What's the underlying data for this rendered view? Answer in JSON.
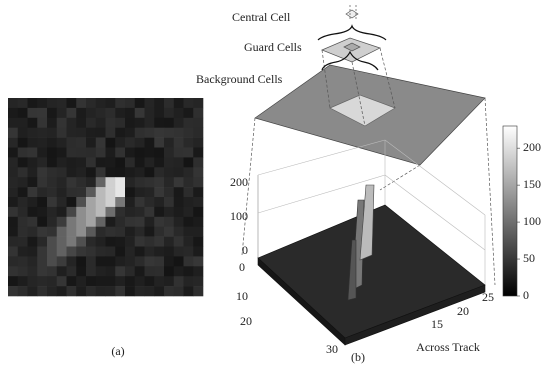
{
  "labels": {
    "central": "Central Cell",
    "guard": "Guard Cells",
    "background": "Background Cells"
  },
  "panel_a": {
    "label": "(a)"
  },
  "panel_b": {
    "label": "(b)",
    "z_ticks": [
      0,
      100,
      200
    ],
    "row_ticks": [
      0,
      10,
      20,
      30
    ],
    "col_ticks": [
      15,
      20,
      25
    ],
    "col_axis_label": "Across Track",
    "colorbar_ticks": [
      0,
      50,
      100,
      150,
      200
    ]
  }
}
